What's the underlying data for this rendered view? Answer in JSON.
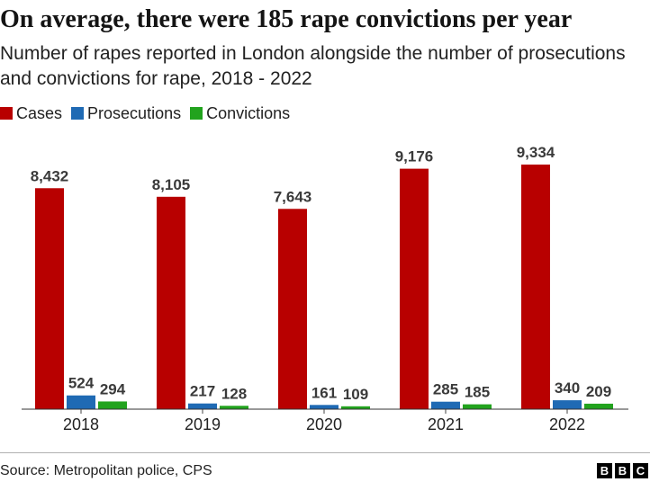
{
  "title": "On average, there were 185 rape convictions per year",
  "subtitle": "Number of rapes reported in London alongside the number of prosecutions and convictions for rape, 2018 - 2022",
  "source": "Source: Metropolitan police, CPS",
  "logo": [
    "B",
    "B",
    "C"
  ],
  "colors": {
    "Cases": "#b80000",
    "Prosecutions": "#1f6ab4",
    "Convictions": "#22a31e"
  },
  "chart_data": {
    "type": "bar",
    "title": "On average, there were 185 rape convictions per year",
    "xlabel": "",
    "ylabel": "",
    "ylim": [
      0,
      9334
    ],
    "grid": false,
    "legend": "top-left",
    "categories": [
      "2018",
      "2019",
      "2020",
      "2021",
      "2022"
    ],
    "series": [
      {
        "name": "Cases",
        "values": [
          8432,
          8105,
          7643,
          9176,
          9334
        ],
        "labels": [
          "8,432",
          "8,105",
          "7,643",
          "9,176",
          "9,334"
        ]
      },
      {
        "name": "Prosecutions",
        "values": [
          524,
          217,
          161,
          285,
          340
        ],
        "labels": [
          "524",
          "217",
          "161",
          "285",
          "340"
        ]
      },
      {
        "name": "Convictions",
        "values": [
          294,
          128,
          109,
          185,
          209
        ],
        "labels": [
          "294",
          "128",
          "109",
          "185",
          "209"
        ]
      }
    ]
  }
}
